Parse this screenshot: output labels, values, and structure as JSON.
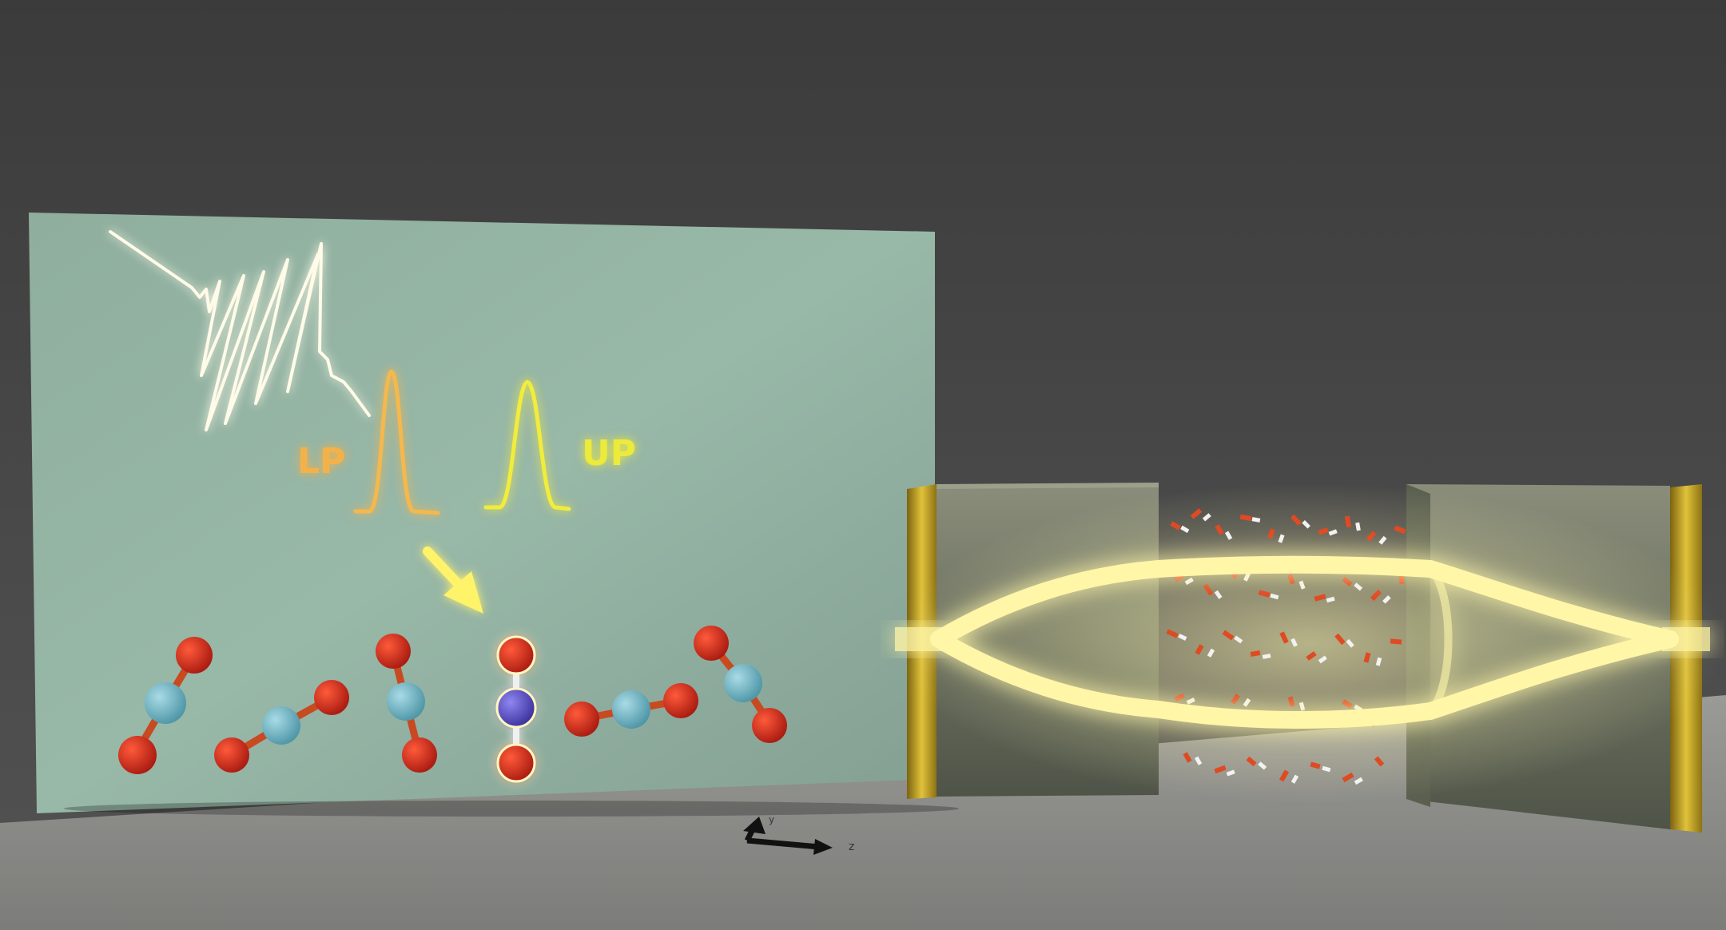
{
  "labels": {
    "lower_polariton": "LP",
    "upper_polariton": "UP",
    "axis_z": "z",
    "axis_y": "y"
  },
  "colors": {
    "background_top": "#3b3b3b",
    "background_mid": "#4a4a4a",
    "floor": "#8d8d8a",
    "panel": "#93b3a2",
    "panel_dark": "#7f9e8f",
    "lp_color": "#f3b24a",
    "up_color": "#ecea3a",
    "glow": "#fff89a",
    "gold_mirror": "#c9a626",
    "oxygen": "#c8261a",
    "carbon": "#6fb7c8",
    "excited_carbon": "#5a4fc0",
    "hydrogen": "#f0f0f0"
  },
  "icons": [
    "laser-pulse-icon",
    "arrow-icon",
    "axis-icon"
  ]
}
